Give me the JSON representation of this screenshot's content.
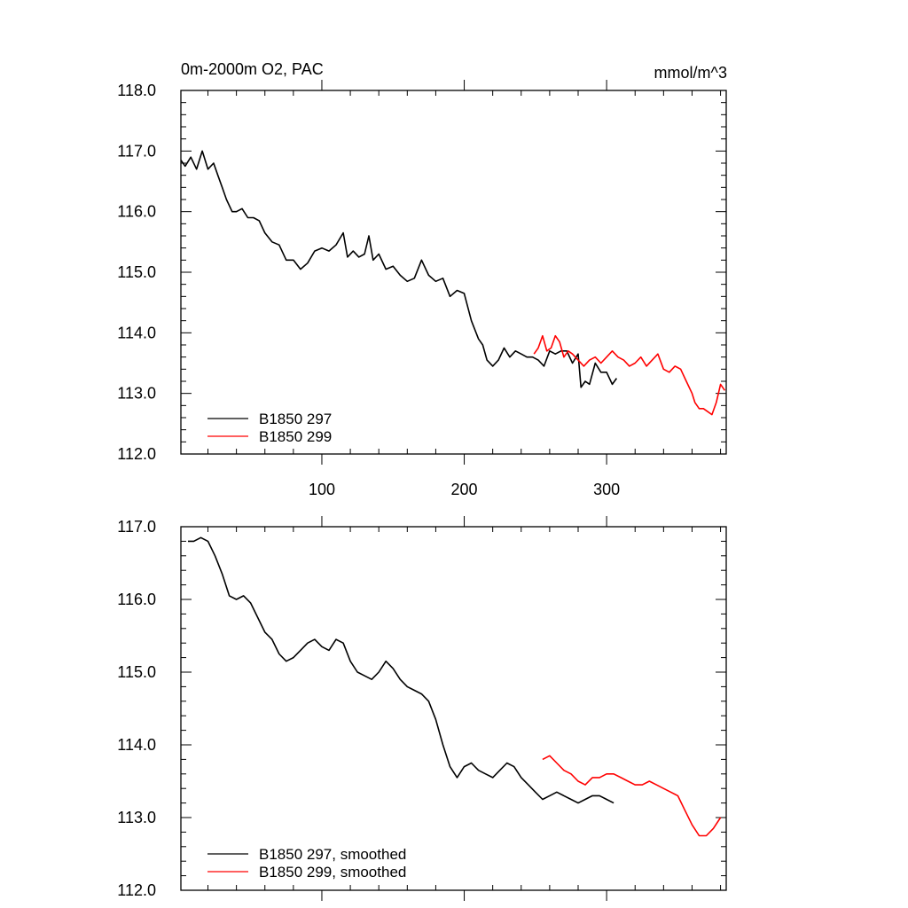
{
  "chart_data": [
    {
      "type": "line",
      "title_left": "0m-2000m O2, PAC",
      "title_right": "mmol/m^3",
      "xlim": [
        1,
        384
      ],
      "ylim": [
        112.0,
        118.0
      ],
      "xticks": [
        100,
        200,
        300
      ],
      "xtick_labels": [
        "100",
        "200",
        "300"
      ],
      "yticks": [
        112,
        113,
        114,
        115,
        116,
        117,
        118
      ],
      "ytick_labels": [
        "112.0",
        "113.0",
        "114.0",
        "115.0",
        "116.0",
        "117.0",
        "118.0"
      ],
      "series": [
        {
          "name": "B1850 297",
          "color": "#000000",
          "x": [
            1,
            4,
            8,
            12,
            16,
            20,
            24,
            27,
            30,
            33,
            37,
            40,
            44,
            48,
            52,
            56,
            60,
            65,
            70,
            75,
            80,
            85,
            90,
            95,
            100,
            105,
            110,
            115,
            118,
            122,
            126,
            130,
            133,
            136,
            140,
            145,
            150,
            155,
            160,
            165,
            170,
            175,
            180,
            185,
            190,
            195,
            200,
            205,
            210,
            213,
            216,
            220,
            224,
            228,
            232,
            236,
            240,
            244,
            248,
            252,
            256,
            260,
            264,
            268,
            272,
            276,
            280,
            282,
            285,
            288,
            292,
            296,
            300,
            304,
            307
          ],
          "y": [
            116.85,
            116.75,
            116.9,
            116.7,
            117.0,
            116.7,
            116.8,
            116.6,
            116.4,
            116.2,
            116.0,
            116.0,
            116.05,
            115.9,
            115.9,
            115.85,
            115.65,
            115.5,
            115.45,
            115.2,
            115.2,
            115.05,
            115.15,
            115.35,
            115.4,
            115.35,
            115.45,
            115.65,
            115.25,
            115.35,
            115.25,
            115.3,
            115.6,
            115.2,
            115.3,
            115.05,
            115.1,
            114.95,
            114.85,
            114.9,
            115.2,
            114.95,
            114.85,
            114.9,
            114.6,
            114.7,
            114.65,
            114.2,
            113.9,
            113.8,
            113.55,
            113.45,
            113.55,
            113.75,
            113.6,
            113.7,
            113.65,
            113.6,
            113.6,
            113.55,
            113.45,
            113.7,
            113.65,
            113.7,
            113.7,
            113.5,
            113.65,
            113.1,
            113.2,
            113.15,
            113.5,
            113.35,
            113.35,
            113.15,
            113.25
          ]
        },
        {
          "name": "B1850 299",
          "color": "#ff0000",
          "x": [
            249,
            252,
            255,
            258,
            261,
            264,
            267,
            270,
            273,
            276,
            280,
            284,
            288,
            292,
            296,
            300,
            304,
            308,
            312,
            316,
            320,
            324,
            328,
            332,
            336,
            340,
            344,
            348,
            352,
            356,
            360,
            362,
            365,
            368,
            371,
            374,
            377,
            380,
            383
          ],
          "y": [
            113.65,
            113.75,
            113.95,
            113.7,
            113.75,
            113.95,
            113.85,
            113.6,
            113.7,
            113.65,
            113.55,
            113.45,
            113.55,
            113.6,
            113.5,
            113.6,
            113.7,
            113.6,
            113.55,
            113.45,
            113.5,
            113.6,
            113.45,
            113.55,
            113.65,
            113.4,
            113.35,
            113.45,
            113.4,
            113.2,
            113.0,
            112.85,
            112.75,
            112.75,
            112.7,
            112.65,
            112.85,
            113.15,
            113.05
          ]
        }
      ],
      "legend": [
        "B1850 297",
        "B1850 299"
      ]
    },
    {
      "type": "line",
      "xlim": [
        1,
        384
      ],
      "ylim": [
        112.0,
        117.0
      ],
      "yticks": [
        112,
        113,
        114,
        115,
        116,
        117
      ],
      "ytick_labels": [
        "112.0",
        "113.0",
        "114.0",
        "115.0",
        "116.0",
        "117.0"
      ],
      "series": [
        {
          "name": "B1850 297, smoothed",
          "color": "#000000",
          "x": [
            6,
            10,
            15,
            20,
            25,
            30,
            35,
            40,
            45,
            50,
            55,
            60,
            65,
            70,
            75,
            80,
            85,
            90,
            95,
            100,
            105,
            110,
            115,
            120,
            125,
            130,
            135,
            140,
            145,
            150,
            155,
            160,
            165,
            170,
            175,
            180,
            185,
            190,
            195,
            200,
            205,
            210,
            215,
            220,
            225,
            230,
            235,
            240,
            245,
            250,
            255,
            260,
            265,
            270,
            275,
            280,
            285,
            290,
            295,
            300,
            305
          ],
          "y": [
            116.8,
            116.8,
            116.85,
            116.8,
            116.6,
            116.35,
            116.05,
            116.0,
            116.05,
            115.95,
            115.75,
            115.55,
            115.45,
            115.25,
            115.15,
            115.2,
            115.3,
            115.4,
            115.45,
            115.35,
            115.3,
            115.45,
            115.4,
            115.15,
            115.0,
            114.95,
            114.9,
            115.0,
            115.15,
            115.05,
            114.9,
            114.8,
            114.75,
            114.7,
            114.6,
            114.35,
            114.0,
            113.7,
            113.55,
            113.7,
            113.75,
            113.65,
            113.6,
            113.55,
            113.65,
            113.75,
            113.7,
            113.55,
            113.45,
            113.35,
            113.25,
            113.3,
            113.35,
            113.3,
            113.25,
            113.2,
            113.25,
            113.3,
            113.3,
            113.25,
            113.2
          ]
        },
        {
          "name": "B1850 299, smoothed",
          "color": "#ff0000",
          "x": [
            255,
            260,
            265,
            270,
            275,
            280,
            285,
            290,
            295,
            300,
            305,
            310,
            315,
            320,
            325,
            330,
            335,
            340,
            345,
            350,
            355,
            360,
            365,
            370,
            375,
            380
          ],
          "y": [
            113.8,
            113.85,
            113.75,
            113.65,
            113.6,
            113.5,
            113.45,
            113.55,
            113.55,
            113.6,
            113.6,
            113.55,
            113.5,
            113.45,
            113.45,
            113.5,
            113.45,
            113.4,
            113.35,
            113.3,
            113.1,
            112.9,
            112.75,
            112.75,
            112.85,
            113.0
          ]
        }
      ],
      "legend": [
        "B1850 297, smoothed",
        "B1850 299, smoothed"
      ]
    }
  ]
}
